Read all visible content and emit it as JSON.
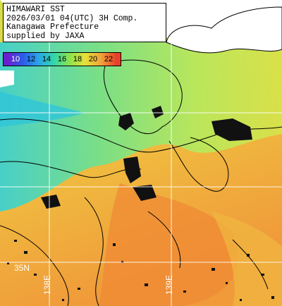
{
  "info": {
    "lines": [
      "HIMAWARI SST",
      "2026/03/01 04(UTC) 3H Comp.",
      "Kanagawa Prefecture",
      "supplied by JAXA"
    ]
  },
  "legend": {
    "ticks": [
      "10",
      "12",
      "14",
      "16",
      "18",
      "20",
      "22"
    ],
    "colors": [
      "#6a1fcf",
      "#2aa6e8",
      "#33d6a8",
      "#8ee24a",
      "#e6e03a",
      "#f0a43a",
      "#e8402a"
    ]
  },
  "grid": {
    "lon_labels": [
      "138E",
      "139E"
    ],
    "lat_label": "35N"
  },
  "palette": {
    "land": "#ffffff",
    "cloud": "#111111",
    "coast": "#000000",
    "grid": "#ffffff"
  }
}
